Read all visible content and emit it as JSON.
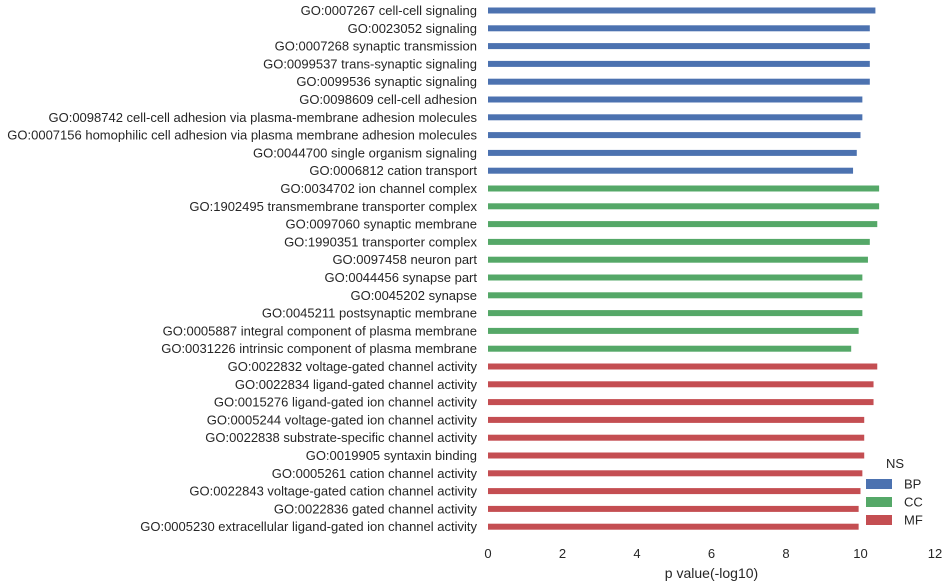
{
  "chart_data": {
    "type": "bar",
    "orientation": "horizontal",
    "xlabel": "p value(-log10)",
    "ylabel": "",
    "xlim": [
      0,
      12
    ],
    "xticks": [
      "0",
      "2",
      "4",
      "6",
      "8",
      "10",
      "12"
    ],
    "grid": false,
    "legend": {
      "title": "NS",
      "placement": "bottom-right",
      "entries": [
        {
          "name": "BP",
          "color": "#4c72b0"
        },
        {
          "name": "CC",
          "color": "#55a868"
        },
        {
          "name": "MF",
          "color": "#c44e52"
        }
      ]
    },
    "bars": [
      {
        "label": "GO:0007267 cell-cell signaling",
        "group": "BP",
        "value": 10.4
      },
      {
        "label": "GO:0023052 signaling",
        "group": "BP",
        "value": 10.25
      },
      {
        "label": "GO:0007268 synaptic transmission",
        "group": "BP",
        "value": 10.25
      },
      {
        "label": "GO:0099537 trans-synaptic signaling",
        "group": "BP",
        "value": 10.25
      },
      {
        "label": "GO:0099536 synaptic signaling",
        "group": "BP",
        "value": 10.25
      },
      {
        "label": "GO:0098609 cell-cell adhesion",
        "group": "BP",
        "value": 10.05
      },
      {
        "label": "GO:0098742 cell-cell adhesion via plasma-membrane adhesion molecules",
        "group": "BP",
        "value": 10.05
      },
      {
        "label": "GO:0007156 homophilic cell adhesion via plasma membrane adhesion molecules",
        "group": "BP",
        "value": 10.0
      },
      {
        "label": "GO:0044700 single organism signaling",
        "group": "BP",
        "value": 9.9
      },
      {
        "label": "GO:0006812 cation transport",
        "group": "BP",
        "value": 9.8
      },
      {
        "label": "GO:0034702 ion channel complex",
        "group": "CC",
        "value": 10.5
      },
      {
        "label": "GO:1902495 transmembrane transporter complex",
        "group": "CC",
        "value": 10.5
      },
      {
        "label": "GO:0097060 synaptic membrane",
        "group": "CC",
        "value": 10.45
      },
      {
        "label": "GO:1990351 transporter complex",
        "group": "CC",
        "value": 10.25
      },
      {
        "label": "GO:0097458 neuron part",
        "group": "CC",
        "value": 10.2
      },
      {
        "label": "GO:0044456 synapse part",
        "group": "CC",
        "value": 10.05
      },
      {
        "label": "GO:0045202 synapse",
        "group": "CC",
        "value": 10.05
      },
      {
        "label": "GO:0045211 postsynaptic membrane",
        "group": "CC",
        "value": 10.05
      },
      {
        "label": "GO:0005887 integral component of plasma membrane",
        "group": "CC",
        "value": 9.95
      },
      {
        "label": "GO:0031226 intrinsic component of plasma membrane",
        "group": "CC",
        "value": 9.75
      },
      {
        "label": "GO:0022832 voltage-gated channel activity",
        "group": "MF",
        "value": 10.45
      },
      {
        "label": "GO:0022834 ligand-gated channel activity",
        "group": "MF",
        "value": 10.35
      },
      {
        "label": "GO:0015276 ligand-gated ion channel activity",
        "group": "MF",
        "value": 10.35
      },
      {
        "label": "GO:0005244 voltage-gated ion channel activity",
        "group": "MF",
        "value": 10.1
      },
      {
        "label": "GO:0022838 substrate-specific channel activity",
        "group": "MF",
        "value": 10.1
      },
      {
        "label": "GO:0019905 syntaxin binding",
        "group": "MF",
        "value": 10.1
      },
      {
        "label": "GO:0005261 cation channel activity",
        "group": "MF",
        "value": 10.05
      },
      {
        "label": "GO:0022843 voltage-gated cation channel activity",
        "group": "MF",
        "value": 10.0
      },
      {
        "label": "GO:0022836 gated channel activity",
        "group": "MF",
        "value": 9.95
      },
      {
        "label": "GO:0005230 extracellular ligand-gated ion channel activity",
        "group": "MF",
        "value": 9.95
      }
    ]
  }
}
